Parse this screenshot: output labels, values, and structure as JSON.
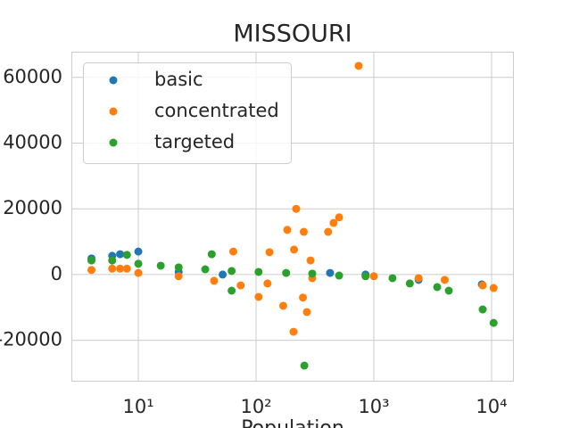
{
  "chart_data": {
    "type": "scatter",
    "title": "MISSOURI",
    "xlabel": "Population",
    "xscale": "log",
    "grid": true,
    "legend": "upper left",
    "xlim": [
      2.7,
      15200
    ],
    "ylim": [
      -32300,
      67800
    ],
    "xticks": [
      {
        "value": 10,
        "label": "10¹"
      },
      {
        "value": 100,
        "label": "10²"
      },
      {
        "value": 1000,
        "label": "10³"
      },
      {
        "value": 10000,
        "label": "10⁴"
      }
    ],
    "yticks": [
      -20000,
      0,
      20000,
      40000,
      60000
    ],
    "series": [
      {
        "name": "basic",
        "color": "#1f77b4",
        "x": [
          4,
          6,
          7,
          10,
          22,
          52,
          425,
          850,
          2400,
          8260
        ],
        "y": [
          4900,
          5700,
          6200,
          7000,
          800,
          0,
          500,
          0,
          -1600,
          -3000
        ]
      },
      {
        "name": "concentrated",
        "color": "#ff7f0e",
        "x": [
          4,
          6,
          7,
          8,
          10,
          743,
          219,
          254,
          507,
          455,
          409,
          290,
          184,
          130,
          64,
          210,
          208,
          270,
          170,
          250,
          105,
          8400,
          10400,
          22,
          44,
          74,
          125,
          300,
          1000,
          2400,
          4000
        ],
        "y": [
          1400,
          1800,
          1800,
          1800,
          500,
          63500,
          20000,
          13000,
          17400,
          15700,
          13000,
          4300,
          13600,
          6800,
          7000,
          7600,
          -17400,
          -11400,
          -9500,
          -7000,
          -6800,
          -3300,
          -4100,
          -500,
          -1900,
          -3300,
          -2700,
          -1100,
          -500,
          -1100,
          -1600
        ]
      },
      {
        "name": "targeted",
        "color": "#2ca02c",
        "x": [
          4,
          6,
          8,
          10,
          42,
          62,
          257,
          8400,
          10400,
          4330,
          3450,
          2020,
          15.5,
          22,
          37,
          62,
          105,
          180,
          300,
          507,
          850,
          1440
        ],
        "y": [
          4300,
          4300,
          6000,
          3300,
          6200,
          -4900,
          -27700,
          -10600,
          -14700,
          -4900,
          -3800,
          -2700,
          2700,
          2200,
          1600,
          1100,
          800,
          500,
          300,
          -300,
          -500,
          -1100
        ]
      }
    ]
  }
}
